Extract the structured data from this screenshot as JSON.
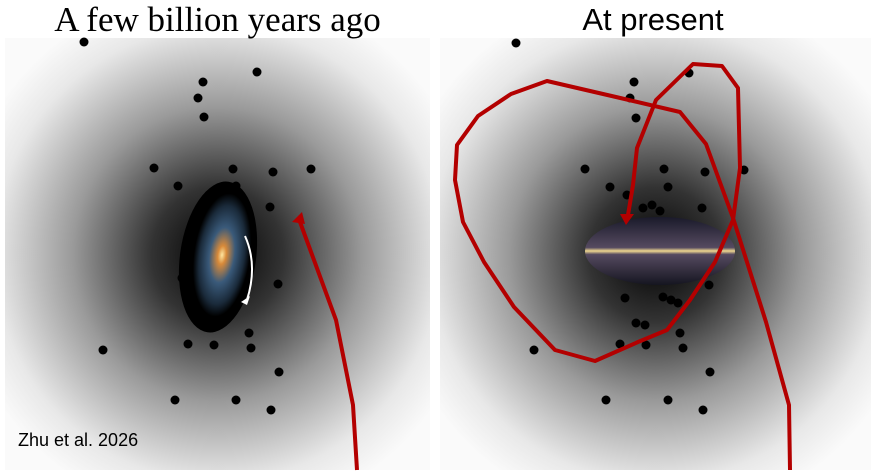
{
  "panels": [
    {
      "title": "A few billion years ago",
      "galaxy": "face-on spiral galaxy with rotation arrow",
      "trajectory_color": "#b30000"
    },
    {
      "title": "At present",
      "galaxy": "edge-on Milky Way disk",
      "trajectory_color": "#b30000"
    }
  ],
  "credit": "Zhu et al. 2026",
  "colors": {
    "halo_center": "#000000",
    "halo_edge": "#ffffff",
    "satellite": "#000000",
    "orbit": "#b30000"
  }
}
